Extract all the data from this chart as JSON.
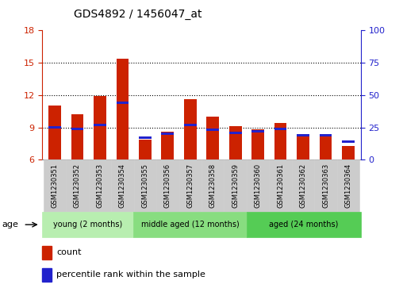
{
  "title": "GDS4892 / 1456047_at",
  "samples": [
    "GSM1230351",
    "GSM1230352",
    "GSM1230353",
    "GSM1230354",
    "GSM1230355",
    "GSM1230356",
    "GSM1230357",
    "GSM1230358",
    "GSM1230359",
    "GSM1230360",
    "GSM1230361",
    "GSM1230362",
    "GSM1230363",
    "GSM1230364"
  ],
  "count_values": [
    11.0,
    10.2,
    11.9,
    15.4,
    7.9,
    8.6,
    11.6,
    10.0,
    9.1,
    8.8,
    9.4,
    8.4,
    8.3,
    7.3
  ],
  "percentile_values": [
    25,
    24,
    27,
    44,
    17,
    20,
    27,
    23,
    21,
    22,
    24,
    19,
    19,
    14
  ],
  "ylim_left": [
    6,
    18
  ],
  "ylim_right": [
    0,
    100
  ],
  "yticks_left": [
    6,
    9,
    12,
    15,
    18
  ],
  "yticks_right": [
    0,
    25,
    50,
    75,
    100
  ],
  "bar_color_red": "#cc2200",
  "bar_color_blue": "#2222cc",
  "bar_width": 0.55,
  "groups": [
    {
      "label": "young (2 months)",
      "start": 0,
      "end": 4,
      "color": "#b8eeb0"
    },
    {
      "label": "middle aged (12 months)",
      "start": 4,
      "end": 9,
      "color": "#88dd80"
    },
    {
      "label": "aged (24 months)",
      "start": 9,
      "end": 14,
      "color": "#55cc55"
    }
  ],
  "legend_count_label": "count",
  "legend_percentile_label": "percentile rank within the sample",
  "title_color": "#000000",
  "left_axis_color": "#cc2200",
  "right_axis_color": "#2222cc",
  "xlab_bg_color": "#cccccc",
  "dotted_line_color": "#000000"
}
